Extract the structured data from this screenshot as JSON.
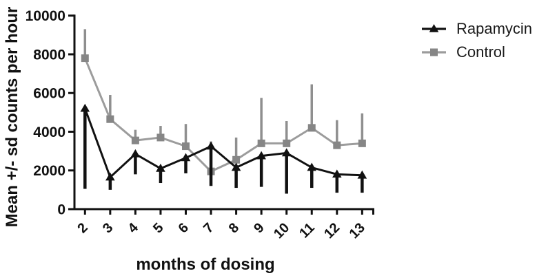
{
  "chart_data": {
    "type": "line",
    "title": "",
    "xlabel": "months of dosing",
    "ylabel": "Mean +/- sd counts per hour",
    "x": [
      2,
      3,
      4,
      5,
      6,
      7,
      8,
      9,
      10,
      11,
      12,
      13
    ],
    "ylim": [
      0,
      10000
    ],
    "yticks": [
      0,
      2000,
      4000,
      6000,
      8000,
      10000
    ],
    "grid": false,
    "legend_position": "top-right",
    "axis_color": "#111111",
    "error_bar_caps": false,
    "series": [
      {
        "name": "Rapamycin",
        "marker": "triangle",
        "color": "#111111",
        "marker_color": "#111111",
        "error_color": "#111111",
        "error_direction": "down",
        "values": [
          5200,
          1650,
          2850,
          2100,
          2650,
          3250,
          2150,
          2750,
          2900,
          2150,
          1800,
          1750
        ],
        "sd": [
          4150,
          650,
          1050,
          750,
          800,
          2050,
          1050,
          1600,
          2100,
          1050,
          950,
          900
        ]
      },
      {
        "name": "Control",
        "marker": "square",
        "color": "#9c9c9c",
        "marker_color": "#868686",
        "error_color": "#8f8f8f",
        "error_direction": "up",
        "values": [
          7800,
          4650,
          3550,
          3700,
          3250,
          1950,
          2550,
          3400,
          3400,
          4200,
          3300,
          3400
        ],
        "sd": [
          1500,
          1250,
          550,
          600,
          1150,
          1550,
          1150,
          2350,
          1150,
          2250,
          1300,
          1550
        ]
      }
    ]
  }
}
